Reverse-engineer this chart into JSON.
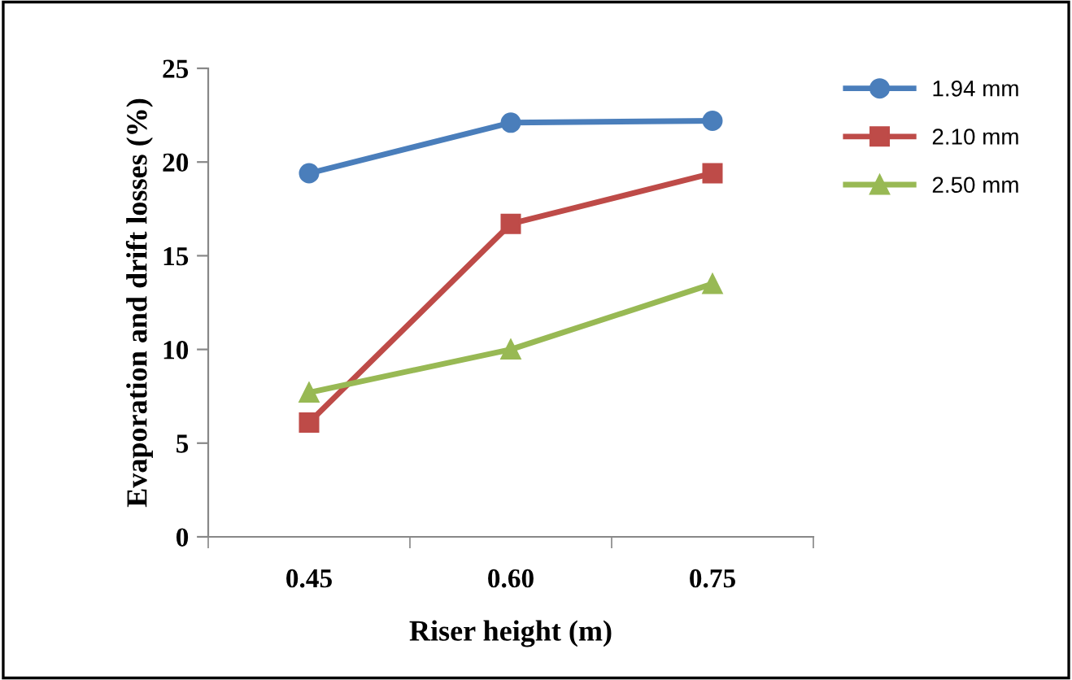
{
  "chart_data": {
    "type": "line",
    "xlabel": "Riser height (m)",
    "ylabel": "Evaporation and drift losses (%)",
    "categories": [
      "0.45",
      "0.60",
      "0.75"
    ],
    "series": [
      {
        "name": "1.94 mm",
        "color": "#4a7ebb",
        "marker": "circle",
        "values": [
          19.4,
          22.1,
          22.2
        ]
      },
      {
        "name": "2.10 mm",
        "color": "#be4b48",
        "marker": "square",
        "values": [
          6.1,
          16.7,
          19.4
        ]
      },
      {
        "name": "2.50 mm",
        "color": "#98b954",
        "marker": "triangle",
        "values": [
          7.7,
          10.0,
          13.5
        ]
      }
    ],
    "ylim": [
      0,
      25
    ],
    "yticks": [
      0,
      5,
      10,
      15,
      20,
      25
    ],
    "grid": false,
    "legend": "right",
    "line_style": "solid"
  }
}
